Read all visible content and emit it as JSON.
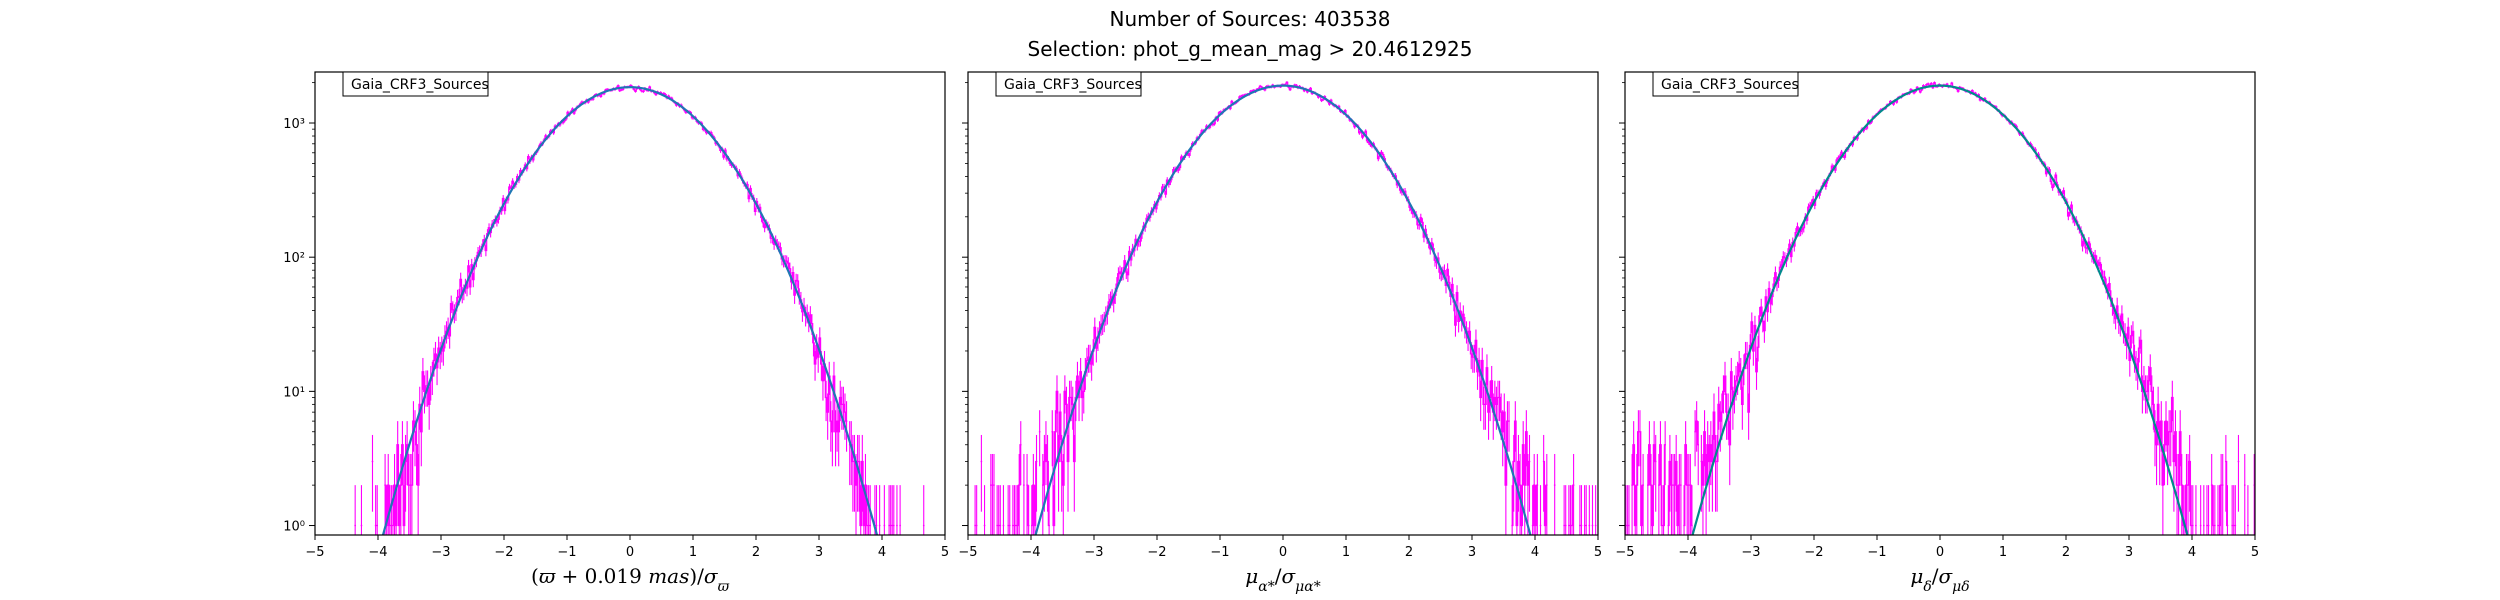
{
  "figure": {
    "title_line1": "Number of Sources: 403538",
    "title_line2": "Selection: phot_g_mean_mag > 20.4612925"
  },
  "colors": {
    "histogram": "#ff00ff",
    "fit": "#1f77b4",
    "fit_alt": "#008b8b",
    "axes": "#000000"
  },
  "chart_data": [
    {
      "type": "line",
      "subtype": "histogram-with-gaussian-fit",
      "title": "",
      "xlabel": "(ϖ + 0.019 mas)/σϖ",
      "ylabel": "",
      "xlim": [
        -5,
        5
      ],
      "ylim": [
        0.85,
        2400
      ],
      "yscale": "log",
      "grid": false,
      "legend": {
        "label": "Gaia_CRF3_Sources",
        "position": "top-left"
      },
      "x_ticks": [
        -5,
        -4,
        -3,
        -2,
        -1,
        0,
        1,
        2,
        3,
        4,
        5
      ],
      "x_tick_labels": [
        "−5",
        "−4",
        "−3",
        "−2",
        "−1",
        "0",
        "1",
        "2",
        "3",
        "4",
        "5"
      ],
      "y_ticks": [
        1,
        10,
        100,
        1000
      ],
      "y_tick_labels": [
        "10⁰",
        "10¹",
        "10²",
        "10³"
      ],
      "series": [
        {
          "kind": "histogram",
          "peak": 1850,
          "sigma": 1.0,
          "mean": 0.0,
          "tail_left": 0,
          "tail_right": 0,
          "x_min_hist": -4.9,
          "x_max_hist": 4.9
        },
        {
          "kind": "gaussian",
          "peak": 1850,
          "sigma": 1.0,
          "mean": 0.0
        }
      ]
    },
    {
      "type": "line",
      "subtype": "histogram-with-gaussian-fit",
      "title": "",
      "xlabel": "μα*/σμα*",
      "ylabel": "",
      "xlim": [
        -5,
        5
      ],
      "ylim": [
        0.85,
        2400
      ],
      "yscale": "log",
      "grid": false,
      "legend": {
        "label": "Gaia_CRF3_Sources",
        "position": "top-left"
      },
      "x_ticks": [
        -5,
        -4,
        -3,
        -2,
        -1,
        0,
        1,
        2,
        3,
        4,
        5
      ],
      "x_tick_labels": [
        "−5",
        "−4",
        "−3",
        "−2",
        "−1",
        "0",
        "1",
        "2",
        "3",
        "4",
        "5"
      ],
      "y_ticks": [
        1,
        10,
        100,
        1000
      ],
      "y_tick_labels": [
        "",
        "",
        "",
        ""
      ],
      "series": [
        {
          "kind": "histogram",
          "peak": 1900,
          "sigma": 1.0,
          "mean": 0.0,
          "tail_left": 1.5,
          "tail_right": 1.0,
          "x_min_hist": -5.0,
          "x_max_hist": 5.0
        },
        {
          "kind": "gaussian",
          "peak": 1900,
          "sigma": 1.0,
          "mean": 0.0
        }
      ]
    },
    {
      "type": "line",
      "subtype": "histogram-with-gaussian-fit",
      "title": "",
      "xlabel": "μδ/σμδ",
      "ylabel": "",
      "xlim": [
        -5,
        5
      ],
      "ylim": [
        0.85,
        2400
      ],
      "yscale": "log",
      "grid": false,
      "legend": {
        "label": "Gaia_CRF3_Sources",
        "position": "top-left"
      },
      "x_ticks": [
        -5,
        -4,
        -3,
        -2,
        -1,
        0,
        1,
        2,
        3,
        4,
        5
      ],
      "x_tick_labels": [
        "−5",
        "−4",
        "−3",
        "−2",
        "−1",
        "0",
        "1",
        "2",
        "3",
        "4",
        "5"
      ],
      "y_ticks": [
        1,
        10,
        100,
        1000
      ],
      "y_tick_labels": [
        "",
        "",
        "",
        ""
      ],
      "series": [
        {
          "kind": "histogram",
          "peak": 1900,
          "sigma": 1.0,
          "mean": 0.0,
          "tail_left": 3.0,
          "tail_right": 2.0,
          "x_min_hist": -5.0,
          "x_max_hist": 5.0
        },
        {
          "kind": "gaussian",
          "peak": 1900,
          "sigma": 1.0,
          "mean": 0.0
        }
      ]
    }
  ]
}
